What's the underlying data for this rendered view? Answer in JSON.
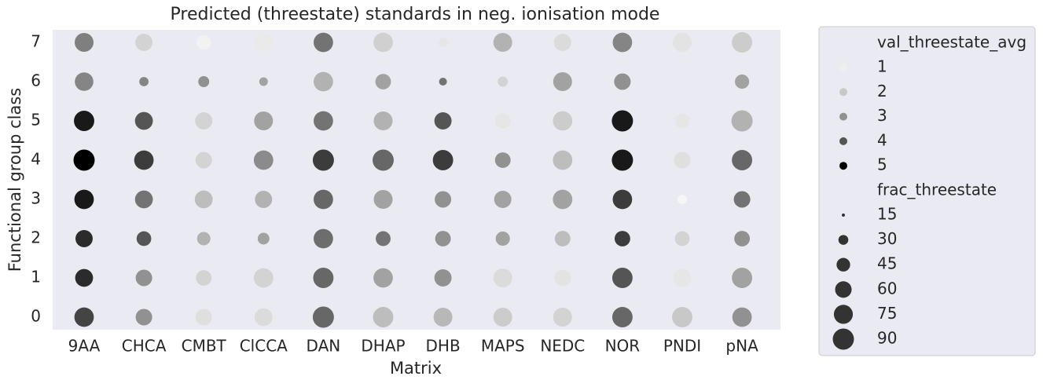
{
  "chart_data": {
    "type": "scatter",
    "title": "Predicted (threestate) standards in neg. ionisation mode",
    "xlabel": "Matrix",
    "ylabel": "Functional group class",
    "categories": [
      "9AA",
      "CHCA",
      "CMBT",
      "ClCCA",
      "DAN",
      "DHAP",
      "DHB",
      "MAPS",
      "NEDC",
      "NOR",
      "PNDI",
      "pNA"
    ],
    "ylim": [
      -0.32,
      7.32
    ],
    "yticks": [
      0,
      1,
      2,
      3,
      4,
      5,
      6,
      7
    ],
    "hue": [
      [
        4.2,
        4.5,
        4.5,
        4.7,
        5,
        4.7,
        3.2,
        3.3
      ],
      [
        3,
        3,
        4,
        3.5,
        4.3,
        4,
        3.2,
        1.7
      ],
      [
        1.4,
        1.7,
        2.4,
        2.2,
        1.7,
        1.7,
        3,
        0.9
      ],
      [
        1.5,
        1.7,
        2.7,
        2.4,
        3.1,
        2.7,
        2.7,
        1.1
      ],
      [
        3.7,
        3.7,
        3.6,
        3.7,
        4.3,
        3.5,
        2.4,
        3.5
      ],
      [
        2.2,
        2.7,
        3.5,
        2.7,
        3.7,
        2.4,
        2.7,
        1.8
      ],
      [
        2.3,
        3,
        3,
        3,
        4.3,
        4,
        3.5,
        1.2
      ],
      [
        1.9,
        1.5,
        2.7,
        2.7,
        3,
        1.2,
        1.7,
        2.4
      ],
      [
        1.7,
        1.3,
        2.2,
        2.7,
        2.2,
        1.9,
        2.7,
        1.5
      ],
      [
        3.7,
        4,
        4.3,
        4.3,
        4.7,
        4.7,
        3,
        3.2
      ],
      [
        2,
        1.2,
        1.7,
        0.8,
        1.4,
        1.2,
        1.1,
        1.3
      ],
      [
        3,
        2.7,
        3,
        3.5,
        3.7,
        2.4,
        2.7,
        1.9
      ]
    ],
    "size": [
      [
        78,
        68,
        64,
        78,
        90,
        84,
        72,
        74
      ],
      [
        60,
        60,
        50,
        68,
        78,
        68,
        28,
        64
      ],
      [
        60,
        55,
        44,
        68,
        60,
        64,
        34,
        48
      ],
      [
        68,
        78,
        37,
        64,
        78,
        74,
        26,
        78
      ],
      [
        90,
        84,
        78,
        78,
        90,
        78,
        78,
        78
      ],
      [
        84,
        78,
        51,
        74,
        90,
        74,
        55,
        78
      ],
      [
        74,
        64,
        55,
        60,
        84,
        64,
        24,
        28
      ],
      [
        74,
        74,
        48,
        64,
        55,
        55,
        31,
        74
      ],
      [
        74,
        60,
        55,
        78,
        78,
        78,
        74,
        64
      ],
      [
        84,
        84,
        55,
        78,
        90,
        90,
        60,
        78
      ],
      [
        84,
        68,
        51,
        28,
        60,
        51,
        14,
        74
      ],
      [
        78,
        84,
        55,
        60,
        84,
        90,
        48,
        84
      ]
    ],
    "hue_legend": {
      "title": "val_threestate_avg",
      "levels": [
        1,
        2,
        3,
        4,
        5
      ]
    },
    "size_legend": {
      "title": "frac_threestate",
      "levels": [
        15,
        30,
        45,
        60,
        75,
        90
      ]
    },
    "background": "#eaeaf2"
  }
}
